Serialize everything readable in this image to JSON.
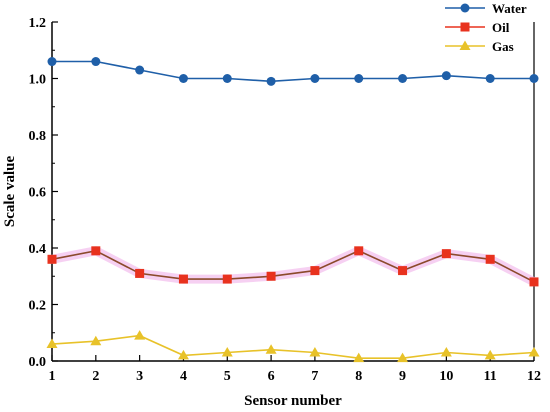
{
  "chart_data": {
    "type": "line",
    "title": "",
    "xlabel": "Sensor number",
    "ylabel": "Scale value",
    "x": [
      1,
      2,
      3,
      4,
      5,
      6,
      7,
      8,
      9,
      10,
      11,
      12
    ],
    "xlim": [
      1,
      12
    ],
    "ylim": [
      0,
      1.2
    ],
    "yticks": [
      0.0,
      0.2,
      0.4,
      0.6,
      0.8,
      1.0,
      1.2
    ],
    "ytick_labels": [
      "0.0",
      "0.2",
      "0.4",
      "0.6",
      "0.8",
      "1.0",
      "1.2"
    ],
    "xtick_labels": [
      "1",
      "2",
      "3",
      "4",
      "5",
      "6",
      "7",
      "8",
      "9",
      "10",
      "11",
      "12"
    ],
    "grid": false,
    "legend_position": "top-right",
    "series": [
      {
        "name": "Water",
        "marker": "circle",
        "color": "#1f5fa8",
        "values": [
          1.06,
          1.06,
          1.03,
          1.0,
          1.0,
          0.99,
          1.0,
          1.0,
          1.0,
          1.01,
          1.0,
          1.0
        ]
      },
      {
        "name": "Oil",
        "marker": "square",
        "color": "#8b4a2b",
        "marker_color": "#e8321e",
        "glow_color": "#f4c8f0",
        "values": [
          0.36,
          0.39,
          0.31,
          0.29,
          0.29,
          0.3,
          0.32,
          0.39,
          0.32,
          0.38,
          0.36,
          0.28
        ]
      },
      {
        "name": "Gas",
        "marker": "triangle",
        "color": "#e8c229",
        "values": [
          0.06,
          0.07,
          0.09,
          0.02,
          0.03,
          0.04,
          0.03,
          0.01,
          0.01,
          0.03,
          0.02,
          0.03
        ]
      }
    ]
  }
}
